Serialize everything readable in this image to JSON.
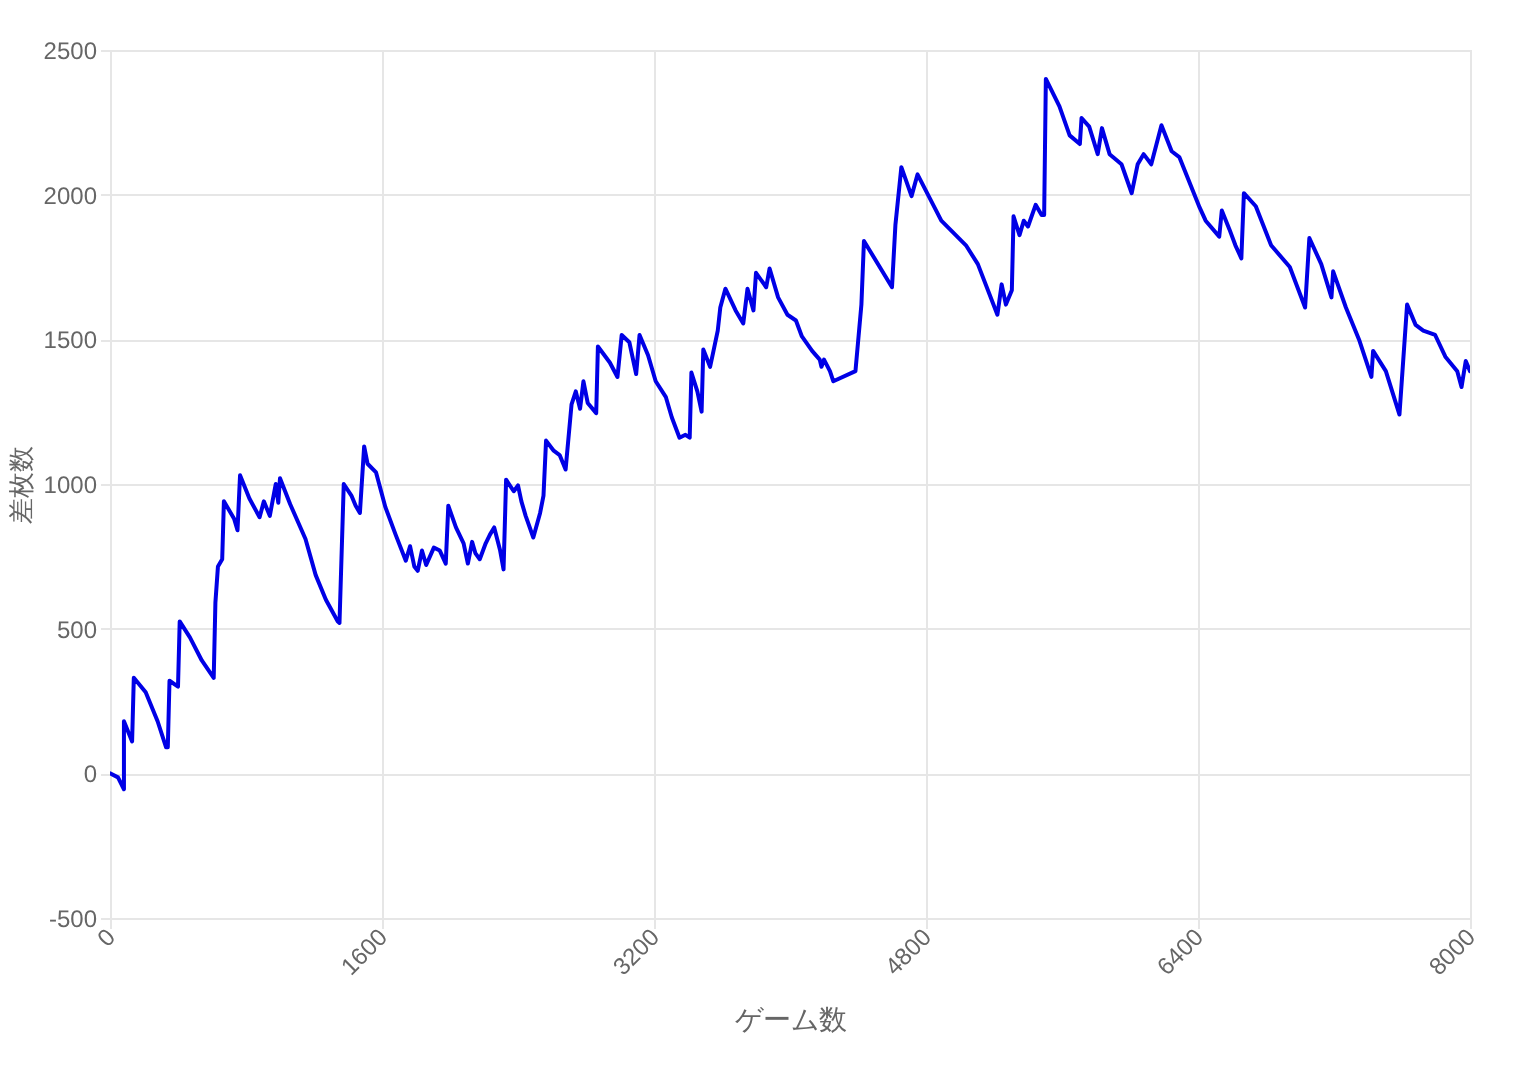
{
  "chart_data": {
    "type": "line",
    "xlabel": "ゲーム数",
    "ylabel": "差枚数",
    "xlim": [
      0,
      8000
    ],
    "ylim": [
      -500,
      2500
    ],
    "xticks": [
      0,
      1600,
      3200,
      4800,
      6400,
      8000
    ],
    "yticks": [
      -500,
      0,
      500,
      1000,
      1500,
      2000,
      2500
    ],
    "grid": true,
    "marker": "none",
    "line_style": "solid",
    "series": [
      {
        "color": "#0000e6",
        "x": [
          0,
          47,
          82,
          82,
          130,
          140,
          210,
          280,
          330,
          340,
          350,
          400,
          410,
          470,
          540,
          610,
          620,
          635,
          660,
          670,
          730,
          750,
          765,
          820,
          880,
          905,
          940,
          975,
          990,
          1000,
          1060,
          1150,
          1210,
          1270,
          1340,
          1350,
          1375,
          1420,
          1445,
          1470,
          1495,
          1515,
          1565,
          1620,
          1680,
          1740,
          1765,
          1790,
          1810,
          1835,
          1860,
          1905,
          1940,
          1975,
          1990,
          2035,
          2080,
          2105,
          2130,
          2150,
          2175,
          2210,
          2235,
          2260,
          2295,
          2315,
          2330,
          2375,
          2400,
          2420,
          2445,
          2490,
          2530,
          2550,
          2565,
          2610,
          2645,
          2680,
          2715,
          2740,
          2765,
          2785,
          2810,
          2860,
          2870,
          2940,
          2985,
          3010,
          3055,
          3095,
          3115,
          3165,
          3210,
          3270,
          3305,
          3350,
          3385,
          3410,
          3420,
          3455,
          3480,
          3490,
          3530,
          3550,
          3575,
          3590,
          3620,
          3680,
          3725,
          3750,
          3785,
          3800,
          3860,
          3880,
          3930,
          3985,
          4035,
          4070,
          4130,
          4175,
          4185,
          4200,
          4235,
          4255,
          4385,
          4420,
          4435,
          4600,
          4620,
          4655,
          4715,
          4750,
          4890,
          5035,
          5105,
          5220,
          5245,
          5270,
          5305,
          5315,
          5350,
          5375,
          5400,
          5445,
          5480,
          5495,
          5505,
          5585,
          5645,
          5705,
          5715,
          5760,
          5810,
          5835,
          5880,
          5950,
          6010,
          6045,
          6080,
          6125,
          6185,
          6245,
          6290,
          6410,
          6445,
          6525,
          6540,
          6585,
          6620,
          6655,
          6670,
          6740,
          6830,
          6940,
          7030,
          7055,
          7125,
          7185,
          7195,
          7270,
          7350,
          7420,
          7430,
          7505,
          7585,
          7630,
          7680,
          7725,
          7795,
          7855,
          7925,
          7950,
          7975,
          8000
        ],
        "values": [
          0,
          -14,
          -55,
          180,
          110,
          330,
          280,
          180,
          90,
          90,
          320,
          300,
          525,
          470,
          390,
          330,
          590,
          715,
          740,
          940,
          880,
          840,
          1030,
          950,
          885,
          940,
          890,
          1000,
          935,
          1020,
          930,
          810,
          685,
          600,
          525,
          520,
          1000,
          960,
          925,
          900,
          1130,
          1070,
          1040,
          920,
          825,
          735,
          785,
          715,
          700,
          770,
          720,
          780,
          770,
          725,
          925,
          850,
          795,
          725,
          800,
          760,
          740,
          795,
          825,
          850,
          770,
          705,
          1015,
          975,
          995,
          940,
          890,
          815,
          900,
          960,
          1150,
          1115,
          1100,
          1050,
          1275,
          1320,
          1260,
          1355,
          1280,
          1245,
          1475,
          1420,
          1370,
          1515,
          1490,
          1380,
          1515,
          1445,
          1355,
          1300,
          1230,
          1160,
          1170,
          1160,
          1385,
          1320,
          1250,
          1465,
          1405,
          1460,
          1530,
          1610,
          1675,
          1600,
          1555,
          1675,
          1600,
          1730,
          1680,
          1745,
          1645,
          1585,
          1565,
          1510,
          1460,
          1430,
          1405,
          1430,
          1390,
          1355,
          1390,
          1620,
          1840,
          1680,
          1895,
          2095,
          1995,
          2070,
          1910,
          1825,
          1760,
          1585,
          1690,
          1620,
          1670,
          1925,
          1860,
          1910,
          1890,
          1965,
          1930,
          1930,
          2400,
          2305,
          2205,
          2175,
          2265,
          2235,
          2140,
          2230,
          2140,
          2105,
          2005,
          2105,
          2140,
          2105,
          2240,
          2150,
          2130,
          1955,
          1910,
          1855,
          1945,
          1880,
          1825,
          1780,
          2005,
          1960,
          1825,
          1750,
          1610,
          1850,
          1760,
          1645,
          1735,
          1610,
          1495,
          1370,
          1460,
          1390,
          1240,
          1620,
          1550,
          1530,
          1515,
          1440,
          1390,
          1335,
          1425,
          1390
        ]
      }
    ]
  }
}
